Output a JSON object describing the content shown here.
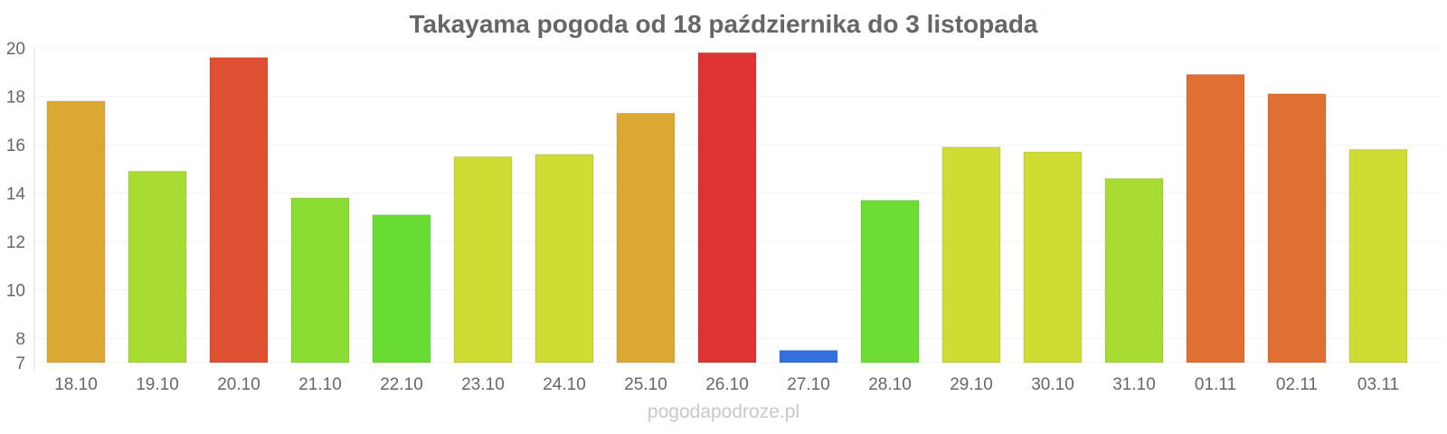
{
  "chart_data": {
    "type": "bar",
    "title": "Takayama pogoda od 18 października do 3 listopada",
    "xlabel": "",
    "ylabel": "",
    "categories": [
      "18.10",
      "19.10",
      "20.10",
      "21.10",
      "22.10",
      "23.10",
      "24.10",
      "25.10",
      "26.10",
      "27.10",
      "28.10",
      "29.10",
      "30.10",
      "31.10",
      "01.11",
      "02.11",
      "03.11"
    ],
    "values": [
      17.8,
      14.9,
      19.6,
      13.8,
      13.1,
      15.5,
      15.6,
      17.3,
      19.8,
      7.5,
      13.7,
      15.9,
      15.7,
      14.6,
      18.9,
      18.1,
      15.8
    ],
    "colors": [
      "#dba833",
      "#a8dc33",
      "#df5033",
      "#8cdd33",
      "#69dc33",
      "#cfdc33",
      "#cfdc33",
      "#dba833",
      "#dd3333",
      "#3370dd",
      "#6ddc33",
      "#cfdc33",
      "#cfdc33",
      "#a8dc33",
      "#df6f33",
      "#df6f33",
      "#cfdc33"
    ],
    "yticks": [
      7,
      8,
      10,
      12,
      14,
      16,
      18,
      20
    ],
    "ylim": [
      7,
      20
    ],
    "grid": true,
    "legend": "none",
    "source_label": "pogodapodroze.pl"
  }
}
